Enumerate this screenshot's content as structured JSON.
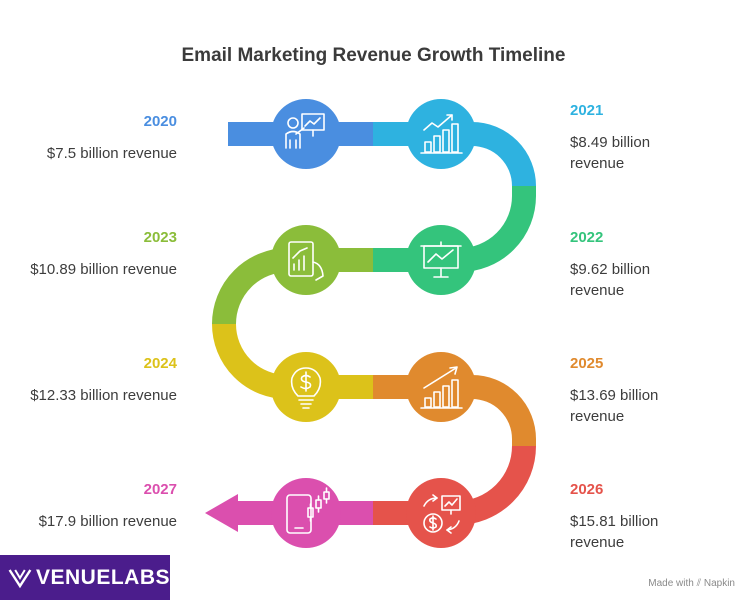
{
  "title": "Email Marketing Revenue Growth Timeline",
  "milestones": [
    {
      "year": "2020",
      "revenue": "$7.5 billion revenue",
      "color": "#4a8ee0",
      "icon": "presenter-chart-icon"
    },
    {
      "year": "2021",
      "revenue": "$8.49 billion revenue",
      "color": "#2eb2e0",
      "icon": "bar-chart-growth-icon"
    },
    {
      "year": "2022",
      "revenue": "$9.62 billion revenue",
      "color": "#34c47c",
      "icon": "presentation-board-icon"
    },
    {
      "year": "2023",
      "revenue": "$10.89 billion revenue",
      "color": "#8bbd3a",
      "icon": "tablet-chart-icon"
    },
    {
      "year": "2024",
      "revenue": "$12.33 billion revenue",
      "color": "#dcc21a",
      "icon": "dollar-bulb-icon"
    },
    {
      "year": "2025",
      "revenue": "$13.69 billion revenue",
      "color": "#e08a2e",
      "icon": "rising-bars-icon"
    },
    {
      "year": "2026",
      "revenue": "$15.81 billion revenue",
      "color": "#e5534b",
      "icon": "money-cycle-icon"
    },
    {
      "year": "2027",
      "revenue": "$17.9 billion revenue",
      "color": "#db4fae",
      "icon": "mobile-candlestick-icon"
    }
  ],
  "brand": {
    "name": "VENUELABS",
    "color": "#4b1d8c"
  },
  "footer": "Made with ⫽ Napkin"
}
